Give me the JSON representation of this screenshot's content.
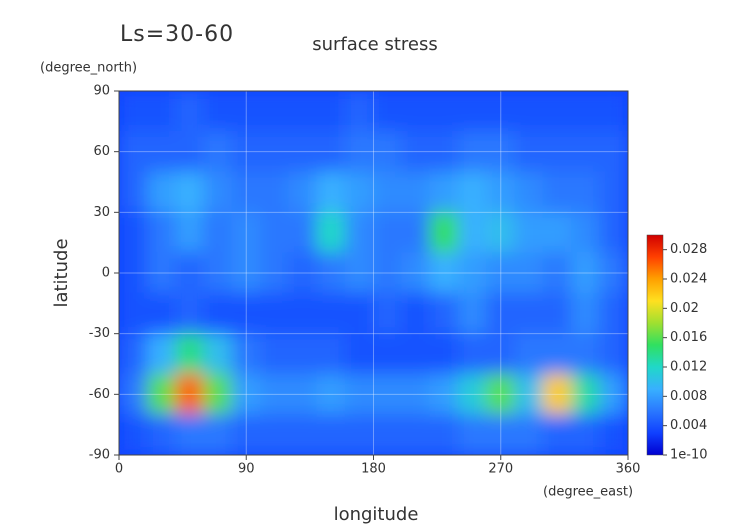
{
  "chart_data": {
    "type": "heatmap",
    "subtitle": "Ls=30-60",
    "title": "surface stress",
    "ylabel": "latitude",
    "xlabel": "longitude",
    "y_unit": "(degree_north)",
    "x_unit": "(degree_east)",
    "xlim": [
      0,
      360
    ],
    "xticks": [
      0,
      90,
      180,
      270,
      360
    ],
    "ylim": [
      -90,
      90
    ],
    "yticks": [
      90,
      60,
      30,
      0,
      -30,
      -60,
      -90
    ],
    "grid": true,
    "x": [
      10,
      30,
      50,
      70,
      90,
      110,
      130,
      150,
      170,
      190,
      210,
      230,
      250,
      270,
      290,
      310,
      330,
      350
    ],
    "y": [
      80,
      60,
      40,
      20,
      0,
      -20,
      -40,
      -60,
      -80
    ],
    "z": [
      [
        0.004,
        0.004,
        0.005,
        0.004,
        0.004,
        0.004,
        0.004,
        0.004,
        0.005,
        0.004,
        0.004,
        0.004,
        0.004,
        0.004,
        0.004,
        0.004,
        0.004,
        0.004
      ],
      [
        0.005,
        0.005,
        0.005,
        0.006,
        0.005,
        0.005,
        0.005,
        0.005,
        0.006,
        0.006,
        0.005,
        0.005,
        0.006,
        0.006,
        0.005,
        0.005,
        0.005,
        0.005
      ],
      [
        0.005,
        0.008,
        0.009,
        0.007,
        0.006,
        0.006,
        0.007,
        0.009,
        0.008,
        0.007,
        0.007,
        0.008,
        0.009,
        0.008,
        0.007,
        0.006,
        0.006,
        0.005
      ],
      [
        0.004,
        0.006,
        0.008,
        0.006,
        0.007,
        0.006,
        0.006,
        0.012,
        0.007,
        0.006,
        0.006,
        0.015,
        0.009,
        0.01,
        0.008,
        0.008,
        0.007,
        0.005
      ],
      [
        0.004,
        0.006,
        0.005,
        0.006,
        0.007,
        0.006,
        0.005,
        0.006,
        0.007,
        0.006,
        0.007,
        0.009,
        0.008,
        0.007,
        0.007,
        0.006,
        0.008,
        0.006
      ],
      [
        0.004,
        0.004,
        0.005,
        0.004,
        0.004,
        0.004,
        0.004,
        0.004,
        0.004,
        0.005,
        0.004,
        0.005,
        0.007,
        0.005,
        0.005,
        0.005,
        0.007,
        0.005
      ],
      [
        0.005,
        0.009,
        0.014,
        0.01,
        0.006,
        0.005,
        0.005,
        0.005,
        0.004,
        0.004,
        0.004,
        0.004,
        0.005,
        0.005,
        0.006,
        0.006,
        0.006,
        0.005
      ],
      [
        0.006,
        0.016,
        0.026,
        0.016,
        0.008,
        0.007,
        0.007,
        0.008,
        0.007,
        0.007,
        0.007,
        0.008,
        0.011,
        0.016,
        0.01,
        0.022,
        0.013,
        0.008
      ],
      [
        0.004,
        0.005,
        0.006,
        0.006,
        0.005,
        0.005,
        0.005,
        0.005,
        0.005,
        0.005,
        0.005,
        0.005,
        0.006,
        0.006,
        0.006,
        0.005,
        0.005,
        0.004
      ]
    ],
    "colorbar": {
      "lim": [
        0,
        0.03
      ],
      "ticks": [
        1e-10,
        0.004,
        0.008,
        0.012,
        0.016,
        0.02,
        0.024,
        0.028
      ],
      "colors": [
        "#0000d0",
        "#1040ff",
        "#2a78ff",
        "#38b0ff",
        "#20d8c8",
        "#30e060",
        "#a0e030",
        "#ffe020",
        "#ffa000",
        "#ff4000",
        "#d00000"
      ]
    }
  }
}
